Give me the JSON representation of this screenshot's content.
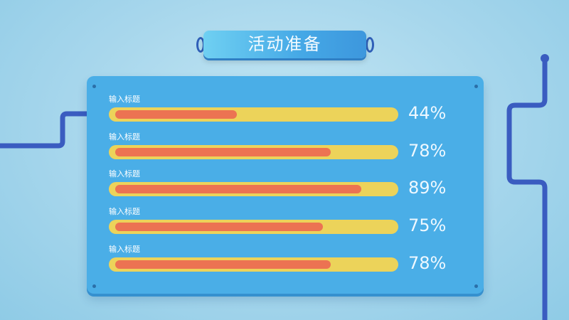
{
  "title": "活动准备",
  "colors": {
    "panel": "#4aaee7",
    "track": "#ecd35a",
    "fill": "#ec7352",
    "pipe": "#3a5cc0"
  },
  "chart_data": {
    "type": "bar",
    "orientation": "horizontal",
    "categories": [
      "输入标题",
      "输入标题",
      "输入标题",
      "输入标题",
      "输入标题"
    ],
    "values": [
      44,
      78,
      89,
      75,
      78
    ],
    "value_labels": [
      "44%",
      "78%",
      "89%",
      "75%",
      "78%"
    ],
    "xlim": [
      0,
      100
    ]
  }
}
